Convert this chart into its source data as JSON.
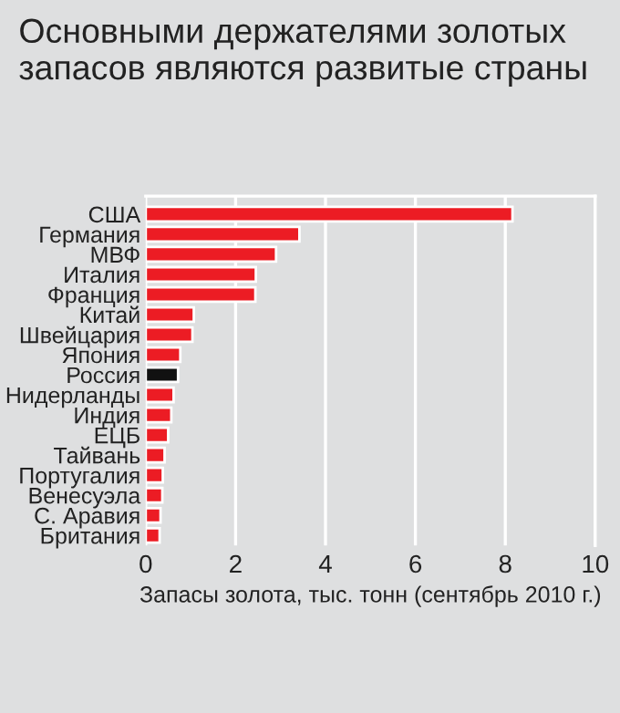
{
  "chart_data": {
    "type": "bar",
    "orientation": "horizontal",
    "title": "Основными держателями золотых запасов являются развитые страны",
    "xlabel": "Запасы золота, тыс. тонн (сентябрь 2010 г.)",
    "categories": [
      "США",
      "Германия",
      "МВФ",
      "Италия",
      "Франция",
      "Китай",
      "Швейцария",
      "Япония",
      "Россия",
      "Нидерланды",
      "Индия",
      "ЕЦБ",
      "Тайвань",
      "Португалия",
      "Венесуэла",
      "С. Аравия",
      "Британия"
    ],
    "values": [
      8.16,
      3.42,
      2.9,
      2.45,
      2.44,
      1.07,
      1.04,
      0.77,
      0.72,
      0.62,
      0.57,
      0.5,
      0.42,
      0.38,
      0.37,
      0.33,
      0.31
    ],
    "colors": [
      "#ec1c24",
      "#ec1c24",
      "#ec1c24",
      "#ec1c24",
      "#ec1c24",
      "#ec1c24",
      "#ec1c24",
      "#ec1c24",
      "#111111",
      "#ec1c24",
      "#ec1c24",
      "#ec1c24",
      "#ec1c24",
      "#ec1c24",
      "#ec1c24",
      "#ec1c24",
      "#ec1c24"
    ],
    "xlim": [
      0,
      10
    ],
    "xticks": [
      0,
      2,
      4,
      6,
      8,
      10
    ],
    "grid": "x"
  }
}
